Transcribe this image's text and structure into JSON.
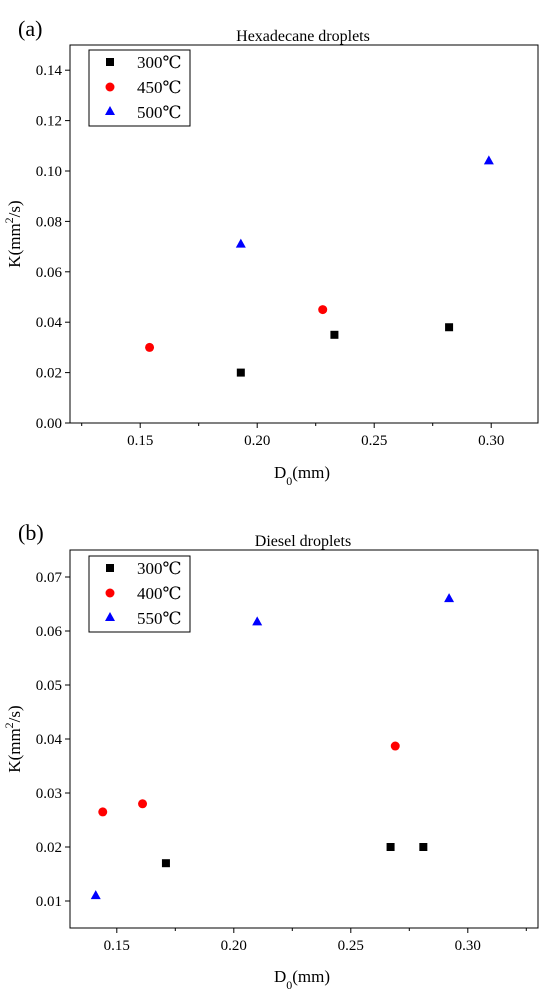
{
  "chart_data": [
    {
      "type": "scatter",
      "panel_label": "(a)",
      "title": "Hexadecane droplets",
      "xlabel_main": "D",
      "xlabel_sub": "0",
      "xlabel_rest": "(mm)",
      "ylabel_main": "K(mm",
      "ylabel_sup": "2",
      "ylabel_rest": "/s)",
      "xlim": [
        0.12,
        0.32
      ],
      "ylim": [
        0.0,
        0.15
      ],
      "xticks": [
        0.15,
        0.2,
        0.25,
        0.3
      ],
      "xtick_labels": [
        "0.15",
        "0.20",
        "0.25",
        "0.30"
      ],
      "yticks": [
        0.0,
        0.02,
        0.04,
        0.06,
        0.08,
        0.1,
        0.12,
        0.14
      ],
      "ytick_labels": [
        "0.00",
        "0.02",
        "0.04",
        "0.06",
        "0.08",
        "0.10",
        "0.12",
        "0.14"
      ],
      "grid": false,
      "legend_position": "top-left",
      "series": [
        {
          "name": "300℃",
          "marker": "square",
          "color": "#000000",
          "points": [
            {
              "x": 0.193,
              "y": 0.02
            },
            {
              "x": 0.233,
              "y": 0.035
            },
            {
              "x": 0.282,
              "y": 0.038
            }
          ]
        },
        {
          "name": "450℃",
          "marker": "circle",
          "color": "#ff0000",
          "points": [
            {
              "x": 0.154,
              "y": 0.03
            },
            {
              "x": 0.228,
              "y": 0.045
            }
          ]
        },
        {
          "name": "500℃",
          "marker": "triangle",
          "color": "#0000ff",
          "points": [
            {
              "x": 0.193,
              "y": 0.071
            },
            {
              "x": 0.299,
              "y": 0.104
            }
          ]
        }
      ]
    },
    {
      "type": "scatter",
      "panel_label": "(b)",
      "title": "Diesel droplets",
      "xlabel_main": "D",
      "xlabel_sub": "0",
      "xlabel_rest": "(mm)",
      "ylabel_main": "K(mm",
      "ylabel_sup": "2",
      "ylabel_rest": "/s)",
      "xlim": [
        0.13,
        0.33
      ],
      "ylim": [
        0.005,
        0.075
      ],
      "xticks": [
        0.15,
        0.2,
        0.25,
        0.3
      ],
      "xtick_labels": [
        "0.15",
        "0.20",
        "0.25",
        "0.30"
      ],
      "yticks": [
        0.01,
        0.02,
        0.03,
        0.04,
        0.05,
        0.06,
        0.07
      ],
      "ytick_labels": [
        "0.01",
        "0.02",
        "0.03",
        "0.04",
        "0.05",
        "0.06",
        "0.07"
      ],
      "grid": false,
      "legend_position": "top-left",
      "series": [
        {
          "name": "300℃",
          "marker": "square",
          "color": "#000000",
          "points": [
            {
              "x": 0.171,
              "y": 0.017
            },
            {
              "x": 0.267,
              "y": 0.02
            },
            {
              "x": 0.281,
              "y": 0.02
            }
          ]
        },
        {
          "name": "400℃",
          "marker": "circle",
          "color": "#ff0000",
          "points": [
            {
              "x": 0.144,
              "y": 0.0265
            },
            {
              "x": 0.161,
              "y": 0.028
            },
            {
              "x": 0.269,
              "y": 0.0387
            }
          ]
        },
        {
          "name": "550℃",
          "marker": "triangle",
          "color": "#0000ff",
          "points": [
            {
              "x": 0.141,
              "y": 0.011
            },
            {
              "x": 0.21,
              "y": 0.0617
            },
            {
              "x": 0.292,
              "y": 0.066
            }
          ]
        }
      ]
    }
  ]
}
